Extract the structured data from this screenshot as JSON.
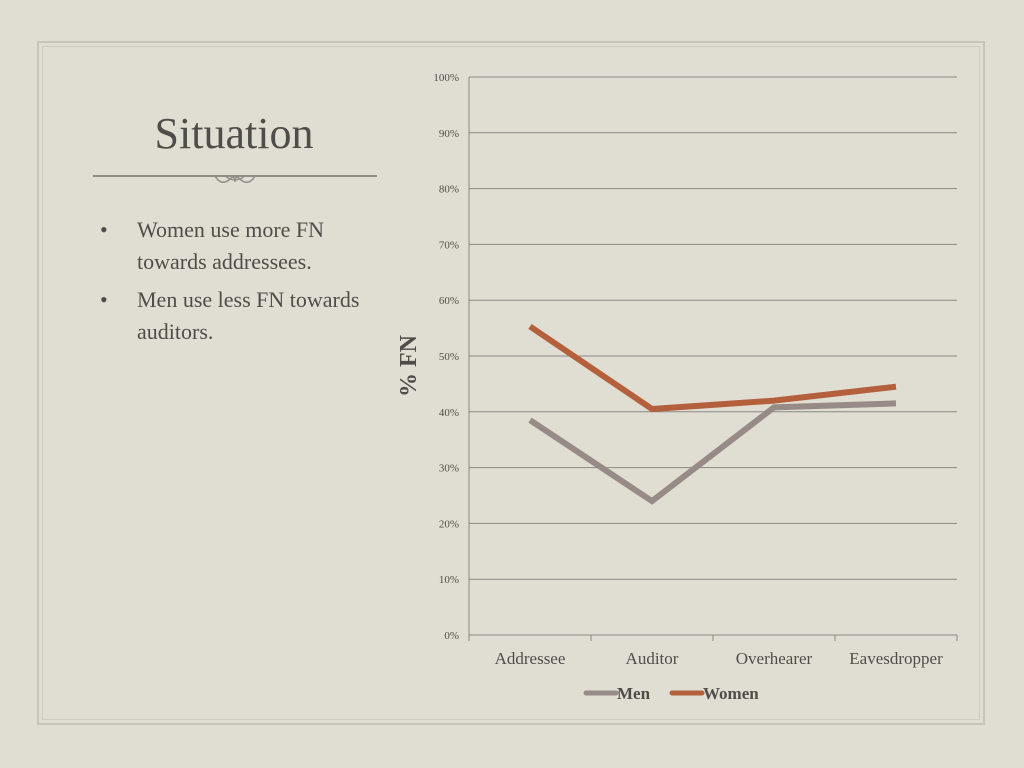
{
  "slide": {
    "title": "Situation",
    "bullets": [
      "Women use more FN towards addressees.",
      "Men use less FN towards auditors."
    ],
    "bullet_glyph": "•"
  },
  "colors": {
    "men": "#968b86",
    "women": "#b4603c",
    "grid": "#8a8884",
    "text": "#4f4d49"
  },
  "chart_data": {
    "type": "line",
    "title": "",
    "xlabel": "",
    "ylabel": "% FN",
    "categories": [
      "Addressee",
      "Auditor",
      "Overhearer",
      "Eavesdropper"
    ],
    "ylim": [
      0,
      100
    ],
    "yticks": [
      "0%",
      "10%",
      "20%",
      "30%",
      "40%",
      "50%",
      "60%",
      "70%",
      "80%",
      "90%",
      "100%"
    ],
    "grid": true,
    "legend_position": "bottom",
    "series": [
      {
        "name": "Men",
        "values": [
          38.5,
          24,
          40.8,
          41.5
        ]
      },
      {
        "name": "Women",
        "values": [
          55.3,
          40.5,
          42,
          44.5
        ]
      }
    ]
  }
}
